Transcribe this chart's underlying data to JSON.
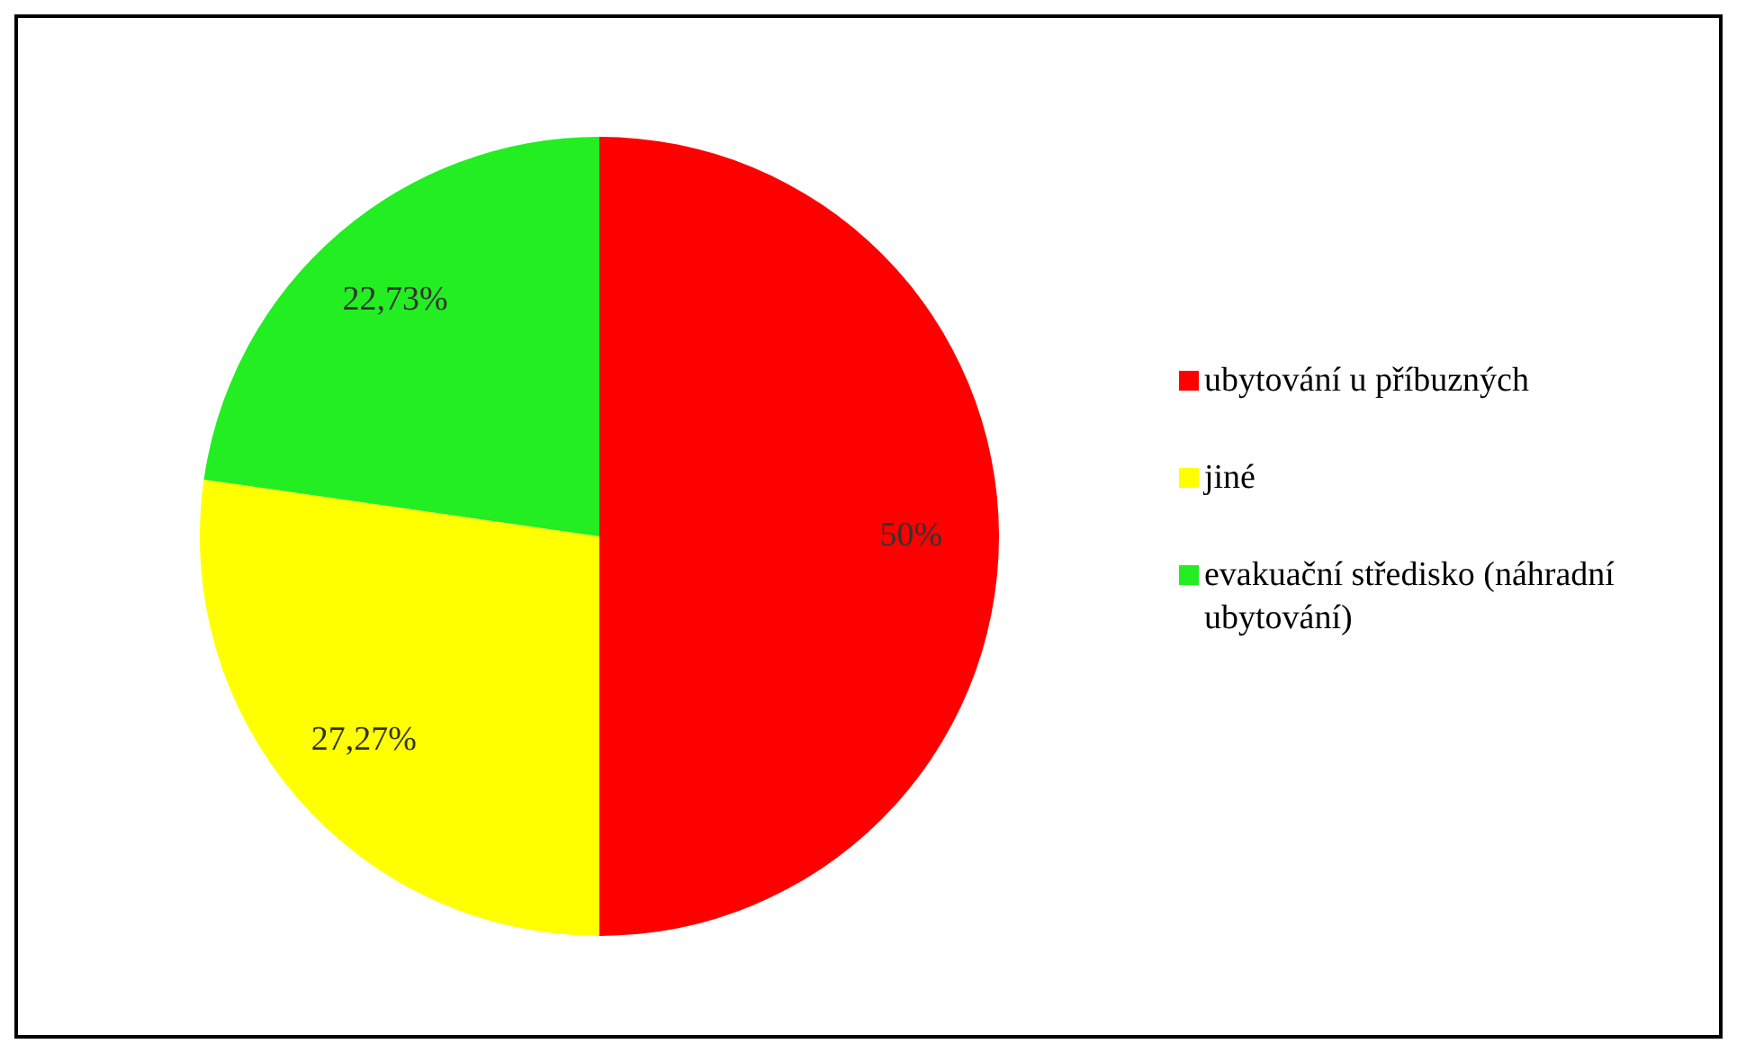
{
  "chart_data": {
    "type": "pie",
    "categories": [
      "ubytování u příbuzných",
      "jiné",
      "evakuační středisko (náhradní ubytování)"
    ],
    "values": [
      50,
      27.27,
      22.73
    ],
    "colors": [
      "#ff0000",
      "#ffff00",
      "#22ee22"
    ],
    "value_labels": [
      "50%",
      "27,27%",
      "22,73%"
    ],
    "legend": "right"
  }
}
